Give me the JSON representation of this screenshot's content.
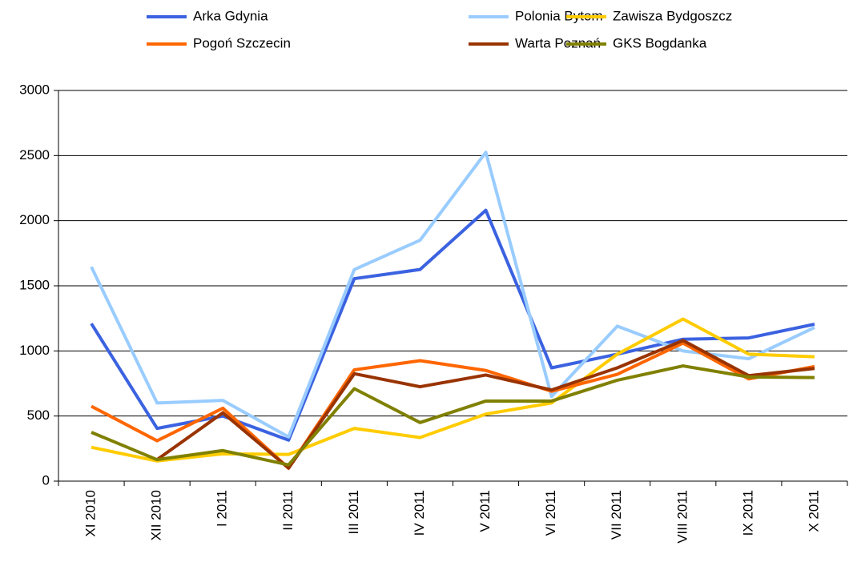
{
  "chart_data": {
    "type": "line",
    "categories": [
      "XI 2010",
      "XII 2010",
      "I 2011",
      "II 2011",
      "III 2011",
      "IV 2011",
      "V 2011",
      "VI 2011",
      "VII 2011",
      "VIII 2011",
      "IX 2011",
      "X 2011"
    ],
    "series": [
      {
        "name": "Arka Gdynia",
        "color": "#3b62e0",
        "values": [
          1210,
          405,
          500,
          315,
          1555,
          1625,
          2080,
          870,
          975,
          1090,
          1100,
          1205
        ]
      },
      {
        "name": "Polonia Bytom",
        "color": "#99ccff",
        "values": [
          1645,
          600,
          620,
          340,
          1625,
          1850,
          2525,
          650,
          1190,
          1000,
          940,
          1180
        ]
      },
      {
        "name": "Zawisza Bydgoszcz",
        "color": "#ffcc00",
        "values": [
          260,
          155,
          210,
          205,
          405,
          335,
          515,
          600,
          975,
          1245,
          975,
          955
        ]
      },
      {
        "name": "Pogoń Szczecin",
        "color": "#ff6600",
        "values": [
          575,
          310,
          560,
          100,
          855,
          925,
          850,
          690,
          820,
          1060,
          785,
          880
        ]
      },
      {
        "name": "Warta Poznań",
        "color": "#993300",
        "values": [
          null,
          165,
          525,
          100,
          825,
          725,
          815,
          700,
          870,
          1080,
          810,
          865
        ]
      },
      {
        "name": "GKS Bogdanka",
        "color": "#808000",
        "values": [
          375,
          165,
          235,
          125,
          710,
          450,
          615,
          615,
          775,
          885,
          800,
          795
        ]
      }
    ],
    "ylim": [
      0,
      3000
    ],
    "yticks": [
      0,
      500,
      1000,
      1500,
      2000,
      2500,
      3000
    ],
    "grid": true,
    "legend": "top"
  }
}
